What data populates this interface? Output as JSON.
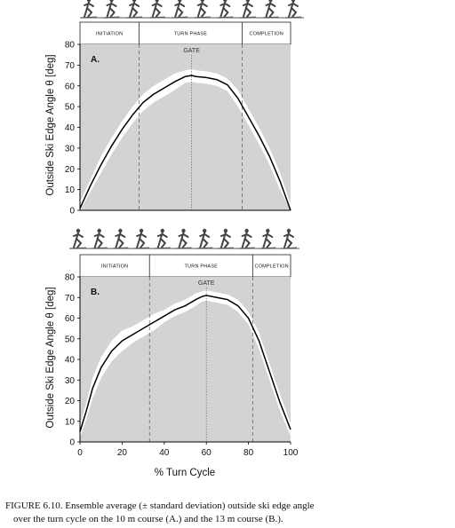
{
  "chart_data": [
    {
      "type": "line",
      "panel_label": "A.",
      "ylabel": "Outside Ski Edge Angle θ [deg]",
      "ylim": [
        0,
        80
      ],
      "xlim": [
        0,
        100
      ],
      "y_ticks": [
        0,
        10,
        20,
        30,
        40,
        50,
        60,
        70,
        80
      ],
      "phases": [
        {
          "label": "INITIATION",
          "start": 0,
          "end": 28
        },
        {
          "label": "TURN PHASE",
          "start": 28,
          "end": 77
        },
        {
          "label": "COMPLETION",
          "start": 77,
          "end": 100
        }
      ],
      "gate_label": "GATE",
      "gate_x": 53,
      "x": [
        0,
        5,
        10,
        15,
        20,
        25,
        30,
        35,
        40,
        45,
        50,
        53,
        55,
        60,
        65,
        70,
        75,
        80,
        85,
        90,
        95,
        100
      ],
      "mean": [
        1,
        12,
        22,
        31,
        39,
        46,
        52,
        56,
        59,
        62,
        64.5,
        65,
        64.5,
        64,
        63,
        60.5,
        54,
        45,
        36,
        26,
        14,
        0
      ],
      "sd": [
        3,
        3,
        4,
        4,
        4,
        4,
        4,
        4,
        4,
        4,
        3,
        3,
        3,
        3,
        3,
        3,
        4,
        4,
        4,
        4,
        4,
        3
      ]
    },
    {
      "type": "line",
      "panel_label": "B.",
      "xlabel": "% Turn Cycle",
      "ylabel": "Outside Ski Edge Angle θ [deg]",
      "ylim": [
        0,
        80
      ],
      "xlim": [
        0,
        100
      ],
      "x_ticks": [
        0,
        20,
        40,
        60,
        80,
        100
      ],
      "y_ticks": [
        0,
        10,
        20,
        30,
        40,
        50,
        60,
        70,
        80
      ],
      "phases": [
        {
          "label": "INITIATION",
          "start": 0,
          "end": 33
        },
        {
          "label": "TURN PHASE",
          "start": 33,
          "end": 82
        },
        {
          "label": "COMPLETION",
          "start": 82,
          "end": 100
        }
      ],
      "gate_label": "GATE",
      "gate_x": 60,
      "x": [
        0,
        3,
        6,
        10,
        15,
        20,
        25,
        30,
        35,
        40,
        45,
        50,
        55,
        58,
        60,
        65,
        70,
        75,
        80,
        85,
        90,
        95,
        100
      ],
      "mean": [
        5,
        15,
        26,
        36,
        44,
        49,
        52,
        55,
        58,
        61,
        64,
        66,
        69,
        70.5,
        71,
        70,
        69,
        66,
        60,
        49,
        34,
        19,
        6
      ],
      "sd": [
        3,
        4,
        5,
        5,
        5,
        5,
        4,
        4,
        4,
        3,
        3,
        3,
        3,
        2.5,
        2.5,
        2.5,
        2.5,
        3,
        3,
        4,
        4,
        4,
        3
      ]
    }
  ],
  "caption": {
    "line1": "FIGURE 6.10.  Ensemble average (± standard deviation) outside ski edge angle",
    "line2": "over the turn cycle on the 10 m course (A.) and the 13 m course (B.)."
  }
}
